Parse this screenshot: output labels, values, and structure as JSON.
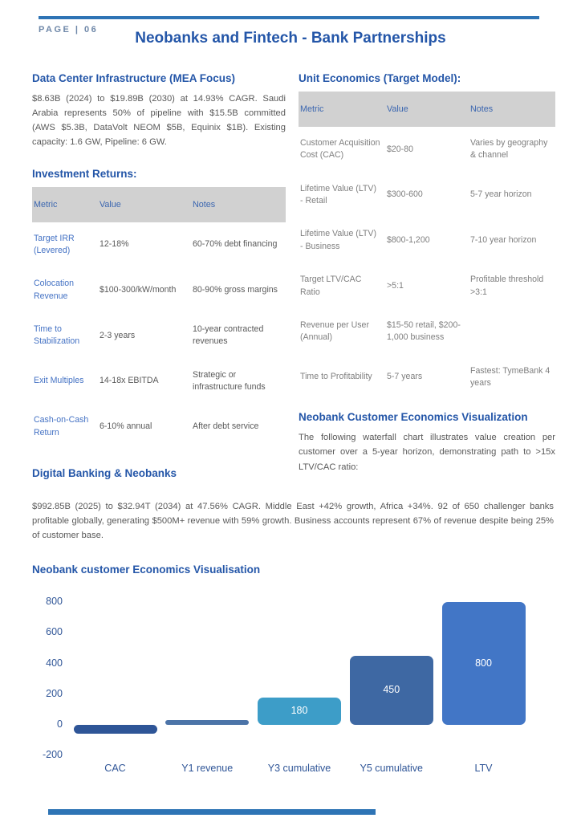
{
  "page": {
    "label": "PAGE | 06",
    "title": "Neobanks and Fintech - Bank Partnerships"
  },
  "colors": {
    "accent_rule": "#2E74B5",
    "heading_blue": "#2456A8",
    "table_header_bg": "#D1D1D1",
    "left_metric_blue": "#4472C4",
    "body_gray": "#595959",
    "right_table_gray": "#7F7F7F"
  },
  "left": {
    "dc_heading": "Data Center Infrastructure (MEA Focus)",
    "dc_text": "$8.63B (2024) to $19.89B (2030) at 14.93% CAGR. Saudi Arabia represents 50% of pipeline with $15.5B committed (AWS $5.3B, DataVolt NEOM $5B, Equinix $1B). Existing capacity: 1.6 GW, Pipeline: 6 GW.",
    "returns_heading": "Investment Returns:",
    "returns_table": {
      "headers": [
        "Metric",
        "Value",
        "Notes"
      ],
      "rows": [
        [
          "Target IRR (Levered)",
          "12-18%",
          "60-70% debt financing"
        ],
        [
          "Colocation Revenue",
          "$100-300/kW/month",
          "80-90% gross margins"
        ],
        [
          "Time to Stabilization",
          "2-3 years",
          "10-year contracted revenues"
        ],
        [
          "Exit Multiples",
          "14-18x EBITDA",
          "Strategic or infrastructure funds"
        ],
        [
          "Cash-on-Cash Return",
          "6-10% annual",
          "After debt service"
        ]
      ]
    },
    "digital_heading": "Digital Banking & Neobanks"
  },
  "right": {
    "unit_heading": "Unit Economics (Target Model):",
    "unit_table": {
      "headers": [
        "Metric",
        "Value",
        "Notes"
      ],
      "rows": [
        [
          "Customer Acquisition Cost (CAC)",
          "$20-80",
          "Varies by geography & channel"
        ],
        [
          "Lifetime Value (LTV) - Retail",
          "$300-600",
          "5-7 year horizon"
        ],
        [
          "Lifetime Value (LTV) - Business",
          "$800-1,200",
          "7-10 year horizon"
        ],
        [
          "Target LTV/CAC Ratio",
          ">5:1",
          "Profitable threshold >3:1"
        ],
        [
          "Revenue per User (Annual)",
          "$15-50 retail, $200-1,000 business",
          ""
        ],
        [
          "Time to Profitability",
          "5-7 years",
          "Fastest: TymeBank 4 years"
        ]
      ]
    },
    "viz_heading": "Neobank Customer Economics Visualization",
    "viz_text": "The following waterfall chart illustrates value creation per customer over a 5-year horizon, demonstrating path to >15x LTV/CAC ratio:"
  },
  "digital_text": "$992.85B (2025) to $32.94T (2034) at 47.56% CAGR. Middle East +42% growth, Africa +34%. 92 of 650 challenger banks profitable globally, generating $500M+ revenue with 59% growth. Business accounts represent 67% of revenue despite being 25% of customer base.",
  "chart_heading": "Neobank customer Economics Visualisation",
  "chart_data": {
    "type": "bar",
    "subtype": "waterfall",
    "title": "Neobank customer Economics Visualisation",
    "categories": [
      "CAC",
      "Y1 revenue",
      "Y3 cumulative",
      "Y5 cumulative",
      "LTV"
    ],
    "values": [
      -60,
      30,
      180,
      450,
      800
    ],
    "data_labels": [
      "",
      "",
      "180",
      "450",
      "800"
    ],
    "bar_colors": [
      "#2E5597",
      "#4C74A8",
      "#3D9DC8",
      "#3E68A3",
      "#4276C6"
    ],
    "yticks": [
      800,
      600,
      400,
      200,
      0,
      -200
    ],
    "ylim": [
      -200,
      870
    ],
    "grid": false,
    "legend": false,
    "tick_color": "#2F5597"
  }
}
